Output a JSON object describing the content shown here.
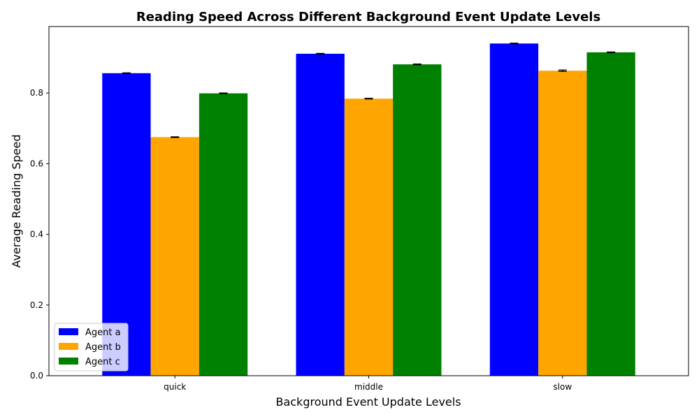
{
  "chart_data": {
    "type": "bar",
    "title": "Reading Speed Across Different Background Event Update Levels",
    "xlabel": "Background Event Update Levels",
    "ylabel": "Average Reading Speed",
    "categories": [
      "quick",
      "middle",
      "slow"
    ],
    "series": [
      {
        "name": "Agent a",
        "color": "#0000ff",
        "values": [
          0.856,
          0.911,
          0.94
        ],
        "errors": [
          0.001,
          0.001,
          0.001
        ]
      },
      {
        "name": "Agent b",
        "color": "#ffa500",
        "values": [
          0.675,
          0.784,
          0.863
        ],
        "errors": [
          0.001,
          0.001,
          0.002
        ]
      },
      {
        "name": "Agent c",
        "color": "#008000",
        "values": [
          0.799,
          0.881,
          0.915
        ],
        "errors": [
          0.001,
          0.001,
          0.001
        ]
      }
    ],
    "ylim": [
      0,
      0.988
    ],
    "yticks": [
      0.0,
      0.2,
      0.4,
      0.6,
      0.8
    ],
    "ytick_labels": [
      "0.0",
      "0.2",
      "0.4",
      "0.6",
      "0.8"
    ],
    "grid": false,
    "legend_position": "bottom-left"
  }
}
